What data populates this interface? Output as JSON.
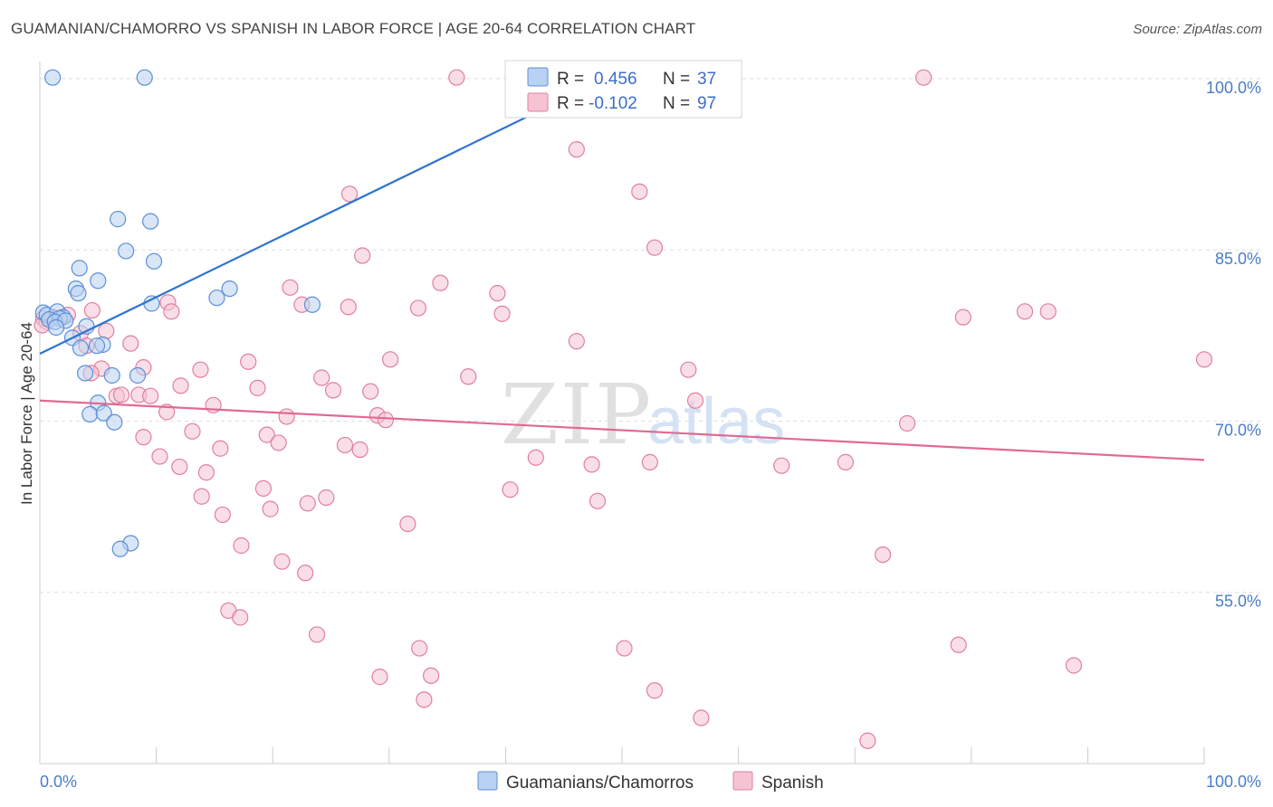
{
  "chart_data": {
    "type": "scatter",
    "title": "GUAMANIAN/CHAMORRO VS SPANISH IN LABOR FORCE | AGE 20-64 CORRELATION CHART",
    "source": "Source: ZipAtlas.com",
    "xlabel": "",
    "ylabel": "In Labor Force | Age 20-64",
    "xlim": [
      0,
      100
    ],
    "ylim": [
      40,
      101.5
    ],
    "x_tick_labels": [
      "0.0%",
      "100.0%"
    ],
    "y_ticks": [
      {
        "value": 100,
        "label": "100.0%"
      },
      {
        "value": 85,
        "label": "85.0%"
      },
      {
        "value": 70,
        "label": "70.0%"
      },
      {
        "value": 55,
        "label": "55.0%"
      }
    ],
    "watermark": {
      "zip": "ZIP",
      "atlas": "atlas"
    },
    "series": [
      {
        "name": "Guamanians/Chamorros",
        "color": "#5b8fd6",
        "fill": "#b9d1f2",
        "R_label": "R =",
        "R": "0.456",
        "N_label": "N =",
        "N": "37",
        "trend": {
          "x": [
            0,
            50
          ],
          "y": [
            75.9,
            100.7
          ],
          "color": "#2e74d0"
        },
        "points": [
          [
            1.1,
            100.1
          ],
          [
            9.0,
            100.1
          ],
          [
            6.7,
            87.7
          ],
          [
            9.5,
            87.5
          ],
          [
            7.4,
            84.9
          ],
          [
            9.8,
            84.0
          ],
          [
            3.4,
            83.4
          ],
          [
            5.0,
            82.3
          ],
          [
            3.1,
            81.6
          ],
          [
            3.3,
            81.2
          ],
          [
            16.3,
            81.6
          ],
          [
            15.2,
            80.8
          ],
          [
            9.6,
            80.3
          ],
          [
            0.3,
            79.5
          ],
          [
            0.6,
            79.3
          ],
          [
            1.5,
            79.6
          ],
          [
            2.0,
            79.1
          ],
          [
            0.8,
            78.9
          ],
          [
            1.7,
            79.0
          ],
          [
            1.3,
            78.7
          ],
          [
            2.2,
            78.8
          ],
          [
            1.4,
            78.2
          ],
          [
            4.0,
            78.3
          ],
          [
            2.8,
            77.3
          ],
          [
            5.4,
            76.7
          ],
          [
            3.5,
            76.4
          ],
          [
            4.9,
            76.6
          ],
          [
            3.9,
            74.2
          ],
          [
            6.2,
            74.0
          ],
          [
            8.4,
            74.0
          ],
          [
            5.0,
            71.6
          ],
          [
            4.3,
            70.6
          ],
          [
            5.5,
            70.7
          ],
          [
            6.4,
            69.9
          ],
          [
            7.8,
            59.3
          ],
          [
            6.9,
            58.8
          ],
          [
            23.4,
            80.2
          ]
        ]
      },
      {
        "name": "Spanish",
        "color": "#e07fa0",
        "fill": "#f6c3d3",
        "R_label": "R =",
        "R": "-0.102",
        "N_label": "N =",
        "N": "97",
        "trend": {
          "x": [
            0,
            100
          ],
          "y": [
            71.8,
            66.6
          ],
          "color": "#e06a92"
        },
        "points": [
          [
            0.3,
            79.0
          ],
          [
            0.6,
            78.7
          ],
          [
            1.1,
            79.1
          ],
          [
            2.4,
            79.3
          ],
          [
            4.5,
            79.7
          ],
          [
            3.5,
            77.7
          ],
          [
            4.0,
            76.6
          ],
          [
            5.7,
            77.9
          ],
          [
            7.8,
            76.8
          ],
          [
            5.3,
            74.6
          ],
          [
            8.9,
            74.7
          ],
          [
            4.4,
            74.2
          ],
          [
            6.6,
            72.2
          ],
          [
            7.0,
            72.3
          ],
          [
            8.5,
            72.3
          ],
          [
            9.5,
            72.2
          ],
          [
            11.0,
            80.4
          ],
          [
            11.3,
            79.6
          ],
          [
            10.9,
            70.8
          ],
          [
            8.9,
            68.6
          ],
          [
            10.3,
            66.9
          ],
          [
            12.0,
            66.0
          ],
          [
            12.1,
            73.1
          ],
          [
            13.1,
            69.1
          ],
          [
            13.8,
            74.5
          ],
          [
            14.3,
            65.5
          ],
          [
            14.9,
            71.4
          ],
          [
            15.5,
            67.6
          ],
          [
            13.9,
            63.4
          ],
          [
            15.7,
            61.8
          ],
          [
            17.3,
            59.1
          ],
          [
            17.9,
            75.2
          ],
          [
            18.7,
            72.9
          ],
          [
            19.2,
            64.1
          ],
          [
            19.5,
            68.8
          ],
          [
            19.8,
            62.3
          ],
          [
            20.5,
            68.1
          ],
          [
            21.2,
            70.4
          ],
          [
            20.8,
            57.7
          ],
          [
            21.5,
            81.7
          ],
          [
            22.8,
            56.7
          ],
          [
            23.0,
            62.8
          ],
          [
            23.8,
            51.3
          ],
          [
            22.5,
            80.2
          ],
          [
            24.2,
            73.8
          ],
          [
            24.6,
            63.3
          ],
          [
            25.2,
            72.7
          ],
          [
            16.2,
            53.4
          ],
          [
            17.2,
            52.8
          ],
          [
            26.2,
            67.9
          ],
          [
            26.6,
            89.9
          ],
          [
            26.5,
            80.0
          ],
          [
            27.5,
            67.5
          ],
          [
            27.7,
            84.5
          ],
          [
            28.4,
            72.6
          ],
          [
            29.0,
            70.5
          ],
          [
            29.2,
            47.6
          ],
          [
            29.7,
            70.1
          ],
          [
            30.1,
            75.4
          ],
          [
            31.6,
            61.0
          ],
          [
            32.5,
            79.9
          ],
          [
            32.6,
            50.1
          ],
          [
            33.0,
            45.6
          ],
          [
            33.6,
            47.7
          ],
          [
            34.4,
            82.1
          ],
          [
            35.8,
            100.1
          ],
          [
            36.8,
            73.9
          ],
          [
            39.3,
            81.2
          ],
          [
            39.7,
            79.4
          ],
          [
            40.4,
            64.0
          ],
          [
            42.6,
            66.8
          ],
          [
            46.1,
            93.8
          ],
          [
            46.1,
            77.0
          ],
          [
            47.4,
            66.2
          ],
          [
            47.9,
            63.0
          ],
          [
            50.0,
            100.1
          ],
          [
            50.2,
            50.1
          ],
          [
            51.5,
            90.1
          ],
          [
            52.4,
            66.4
          ],
          [
            52.8,
            85.2
          ],
          [
            52.8,
            46.4
          ],
          [
            55.7,
            74.5
          ],
          [
            56.3,
            71.8
          ],
          [
            56.8,
            44.0
          ],
          [
            63.7,
            66.1
          ],
          [
            69.2,
            66.4
          ],
          [
            71.1,
            42.0
          ],
          [
            72.4,
            58.3
          ],
          [
            74.5,
            69.8
          ],
          [
            75.9,
            100.1
          ],
          [
            79.3,
            79.1
          ],
          [
            78.9,
            50.4
          ],
          [
            84.6,
            79.6
          ],
          [
            86.6,
            79.6
          ],
          [
            88.8,
            48.6
          ],
          [
            100.0,
            75.4
          ],
          [
            0.2,
            78.4
          ]
        ]
      }
    ],
    "legend_position": "bottom-center"
  }
}
